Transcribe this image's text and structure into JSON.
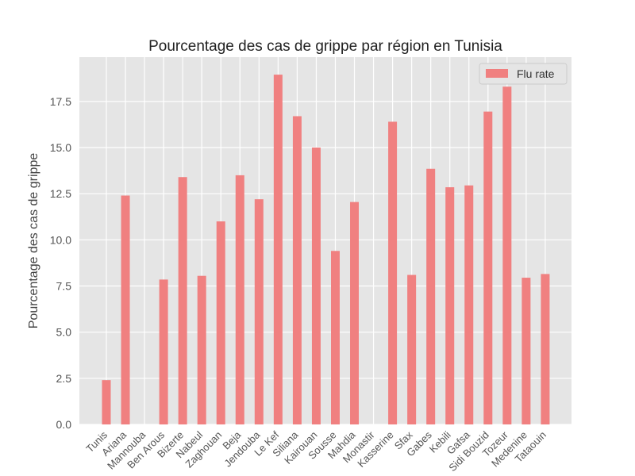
{
  "chart_data": {
    "type": "bar",
    "title": "Pourcentage des cas de grippe par région en Tunisia",
    "xlabel": "",
    "ylabel": "Pourcentage des cas de grippe",
    "ylim": [
      0,
      19.9
    ],
    "yticks": [
      "0.0",
      "2.5",
      "5.0",
      "7.5",
      "10.0",
      "12.5",
      "15.0",
      "17.5"
    ],
    "grid": true,
    "legend": {
      "position": "top-right",
      "entries": [
        "Flu rate"
      ]
    },
    "categories": [
      "Tunis",
      "Ariana",
      "Mannouba",
      "Ben Arous",
      "Bizerte",
      "Nabeul",
      "Zaghouan",
      "Beja",
      "Jendouba",
      "Le Kef",
      "Siliana",
      "Kairouan",
      "Sousse",
      "Mahdia",
      "Monastir",
      "Kasserine",
      "Sfax",
      "Gabes",
      "Kebili",
      "Gafsa",
      "Sidi Bouzid",
      "Tozeur",
      "Medenine",
      "Tataouin"
    ],
    "series": [
      {
        "name": "Flu rate",
        "color": "#f08080",
        "values": [
          2.4,
          12.4,
          0,
          7.85,
          13.4,
          8.05,
          11.0,
          13.5,
          12.2,
          18.95,
          16.7,
          15.0,
          9.4,
          12.05,
          0,
          16.4,
          8.1,
          13.85,
          12.85,
          12.95,
          16.95,
          18.3,
          7.95,
          8.15
        ]
      }
    ]
  },
  "colors": {
    "plot_bg": "#e5e5e5",
    "grid": "#ffffff",
    "bar": "#f08080"
  }
}
